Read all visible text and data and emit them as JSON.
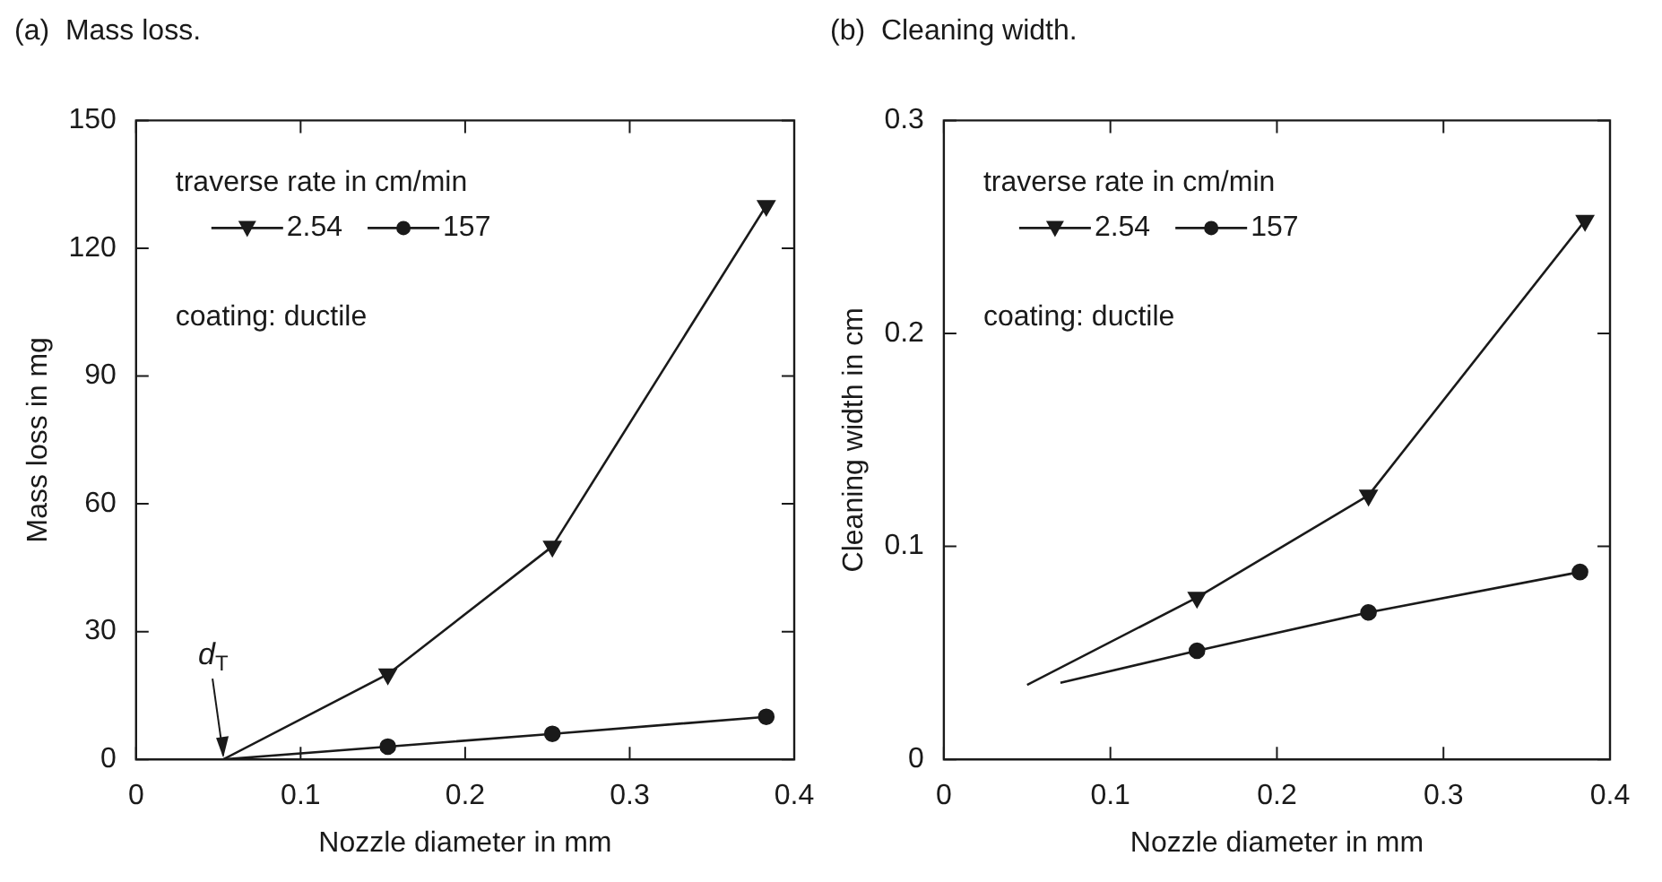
{
  "chart_data": [
    {
      "type": "line",
      "title": "(a)  Mass loss.",
      "xlabel": "Nozzle diameter in mm",
      "ylabel": "Mass loss in mg",
      "legend_title": "traverse rate in cm/min",
      "legend": "top left",
      "series": [
        {
          "name": "2.54",
          "color": "#1a1a1a",
          "marker": "triangle",
          "x": [
            0.053,
            0.153,
            0.253,
            0.383
          ],
          "values": [
            0,
            20,
            50,
            130
          ]
        },
        {
          "name": "157",
          "color": "#1a1a1a",
          "marker": "circle",
          "x": [
            0.053,
            0.153,
            0.253,
            0.383
          ],
          "values": [
            0,
            3,
            6,
            10
          ]
        }
      ],
      "xlim": [
        0,
        0.4
      ],
      "xticks": [
        0,
        0.1,
        0.2,
        0.3,
        0.4
      ],
      "ylim": [
        0,
        150
      ],
      "yticks": [
        0,
        30,
        60,
        90,
        120,
        150
      ],
      "annotations": [
        "coating: ductile",
        {
          "text": "d$_{T}$",
          "x": 0.053,
          "y": 0
        }
      ]
    },
    {
      "type": "line",
      "title": "(b)  Cleaning width.",
      "xlabel": "Nozzle diameter in mm",
      "ylabel": "Cleaning width in cm",
      "legend_title": "traverse rate in cm/min",
      "legend": "top left",
      "series": [
        {
          "name": "2.54",
          "color": "#1a1a1a",
          "marker": "triangle",
          "x": [
            0.05,
            0.152,
            0.255,
            0.385
          ],
          "values": [
            0.035,
            0.076,
            0.124,
            0.253
          ]
        },
        {
          "name": "157",
          "color": "#1a1a1a",
          "marker": "circle",
          "x": [
            0.07,
            0.152,
            0.255,
            0.382
          ],
          "values": [
            0.036,
            0.051,
            0.069,
            0.088
          ]
        }
      ],
      "xlim": [
        0,
        0.4
      ],
      "xticks": [
        0,
        0.1,
        0.2,
        0.3,
        0.4
      ],
      "ylim": [
        0,
        0.3
      ],
      "yticks": [
        0,
        0.1,
        0.2,
        0.3
      ],
      "annotations": [
        "coating: ductile"
      ]
    }
  ]
}
